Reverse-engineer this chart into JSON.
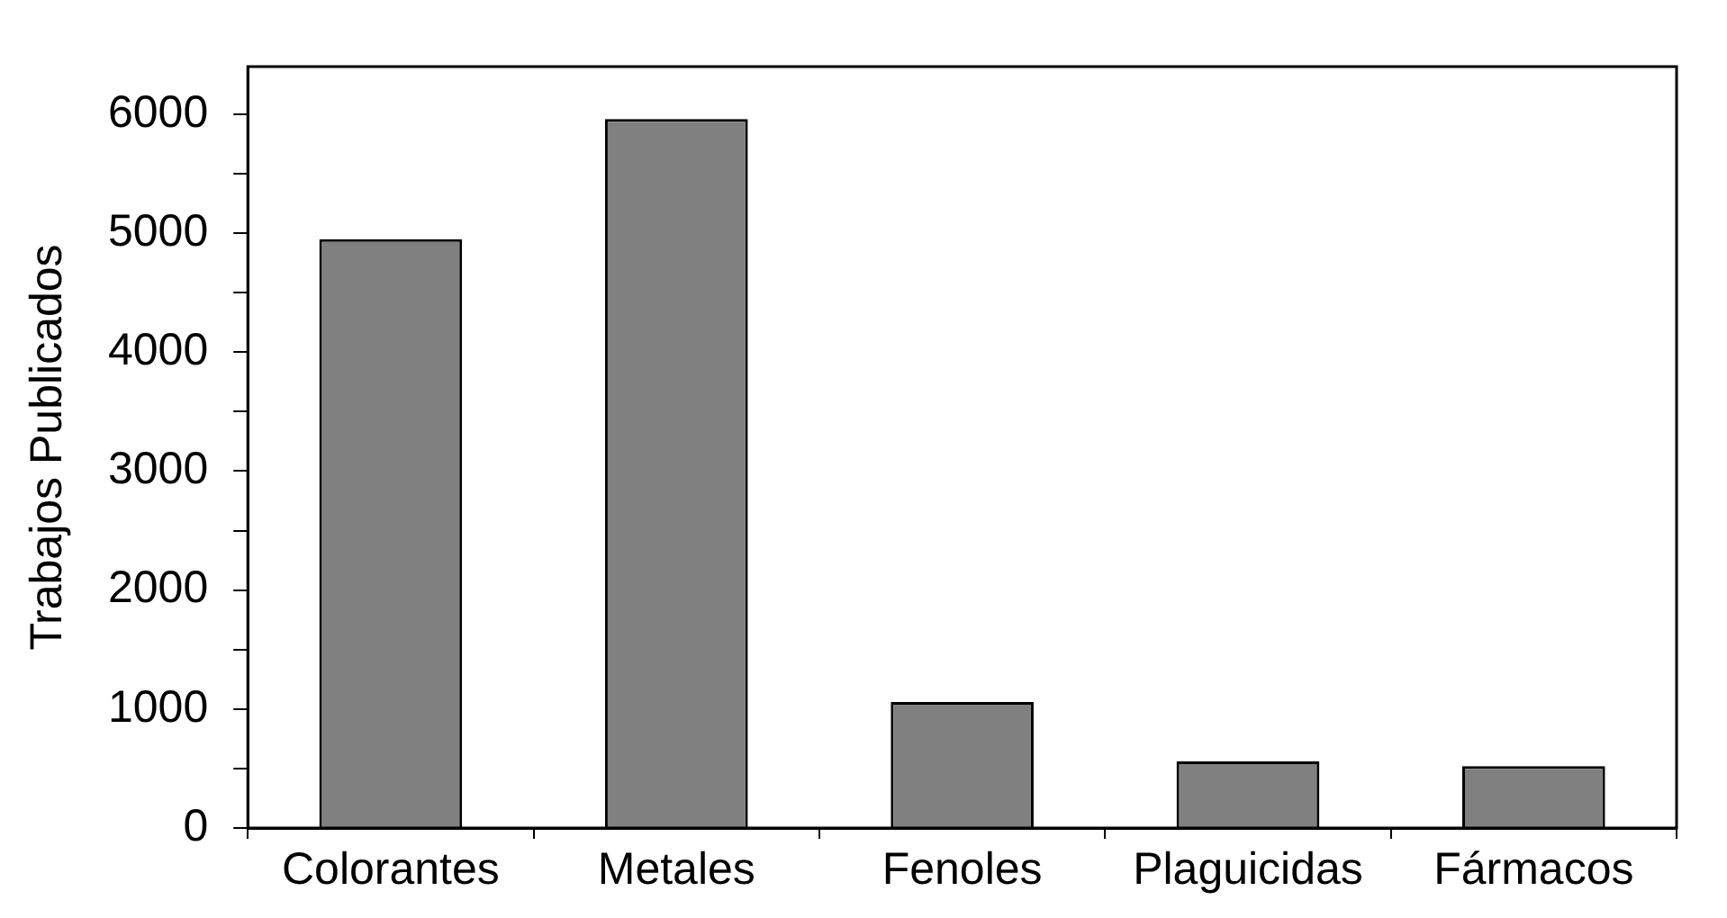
{
  "chart_data": {
    "type": "bar",
    "ylabel": "Trabajos Publicados",
    "categories": [
      "Colorantes",
      "Metales",
      "Fenoles",
      "Plaguicidas",
      "Fármacos"
    ],
    "values": [
      4950,
      5960,
      1060,
      560,
      520
    ],
    "color": "#808080",
    "ylim": [
      0,
      6400
    ],
    "yticks": [
      0,
      {
        "value": 500,
        "label": null
      },
      1000,
      {
        "value": 1500,
        "label": null
      },
      2000,
      {
        "value": 2500,
        "label": null
      },
      3000,
      {
        "value": 3500,
        "label": null
      },
      4000,
      {
        "value": 4500,
        "label": null
      },
      5000,
      {
        "value": 5500,
        "label": null
      },
      6000
    ],
    "grid": false,
    "legend": false
  }
}
